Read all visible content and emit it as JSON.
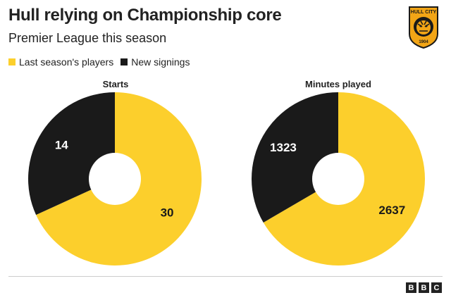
{
  "header": {
    "title": "Hull relying on Championship core",
    "subtitle": "Premier League this season"
  },
  "logo": {
    "text": "HULL CITY",
    "year": "1904",
    "icon": "tiger-crest-icon"
  },
  "colors": {
    "last_season": "#FCCF2C",
    "new_signings": "#1A1A1A"
  },
  "legend": [
    {
      "label": "Last season's players",
      "color": "#FCCF2C"
    },
    {
      "label": "New signings",
      "color": "#1A1A1A"
    }
  ],
  "chart_data": [
    {
      "type": "pie",
      "title": "Starts",
      "donut": true,
      "series": [
        {
          "name": "Last season's players",
          "value": 30,
          "label": "30",
          "color": "#FCCF2C"
        },
        {
          "name": "New signings",
          "value": 14,
          "label": "14",
          "color": "#1A1A1A"
        }
      ]
    },
    {
      "type": "pie",
      "title": "Minutes played",
      "donut": true,
      "series": [
        {
          "name": "Last season's players",
          "value": 2637,
          "label": "2637",
          "color": "#FCCF2C"
        },
        {
          "name": "New signings",
          "value": 1323,
          "label": "1323",
          "color": "#1A1A1A"
        }
      ]
    }
  ],
  "footer": {
    "brand": [
      "B",
      "B",
      "C"
    ]
  }
}
